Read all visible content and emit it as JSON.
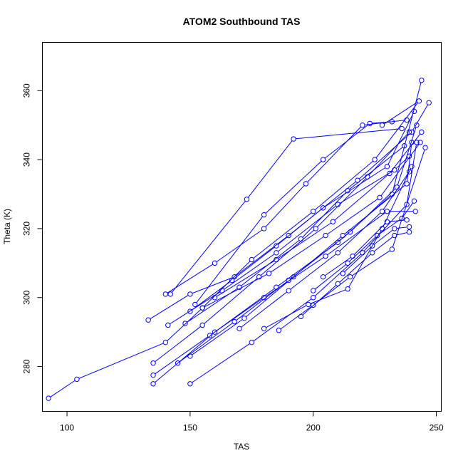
{
  "chart_data": {
    "type": "line",
    "title": "ATOM2 Southbound TAS",
    "xlabel": "TAS",
    "ylabel": "Theta (K)",
    "xlim": [
      90,
      252
    ],
    "ylim": [
      267,
      374
    ],
    "xticks": [
      100,
      150,
      200,
      250
    ],
    "yticks": [
      280,
      300,
      320,
      340,
      360
    ],
    "grid": false,
    "legend": "none",
    "series_color": "#0000ff",
    "marker": "open-circle",
    "series": [
      {
        "name": "",
        "points": [
          [
            92.5,
            270.8
          ],
          [
            104,
            276.3
          ],
          [
            140,
            287
          ],
          [
            155,
            297
          ],
          [
            175,
            311
          ],
          [
            200,
            325
          ],
          [
            225,
            340
          ],
          [
            243,
            357
          ],
          [
            228,
            350
          ]
        ]
      },
      {
        "name": "",
        "points": [
          [
            135,
            275
          ],
          [
            160,
            290
          ],
          [
            185,
            303
          ],
          [
            210,
            316
          ],
          [
            232,
            330
          ],
          [
            244,
            363
          ]
        ]
      },
      {
        "name": "",
        "points": [
          [
            133,
            293.5
          ],
          [
            150,
            301
          ],
          [
            168,
            306
          ],
          [
            190,
            318
          ],
          [
            218,
            334
          ],
          [
            240,
            348
          ],
          [
            247,
            356.5
          ]
        ]
      },
      {
        "name": "",
        "points": [
          [
            150,
            275
          ],
          [
            175,
            287
          ],
          [
            200,
            300
          ],
          [
            220,
            313
          ],
          [
            238,
            327
          ],
          [
            242,
            345
          ]
        ]
      },
      {
        "name": "",
        "points": [
          [
            135,
            277.5
          ],
          [
            158,
            289
          ],
          [
            180,
            300
          ],
          [
            205,
            312
          ],
          [
            230,
            325
          ],
          [
            241.5,
            325
          ]
        ]
      },
      {
        "name": "",
        "points": [
          [
            135,
            281
          ],
          [
            155,
            292
          ],
          [
            178,
            306
          ],
          [
            201,
            320
          ],
          [
            222,
            335
          ],
          [
            239,
            348
          ]
        ]
      },
      {
        "name": "",
        "points": [
          [
            140,
            301
          ],
          [
            160,
            310
          ],
          [
            180,
            320
          ],
          [
            197,
            333
          ],
          [
            220,
            350
          ],
          [
            238,
            351.5
          ]
        ]
      },
      {
        "name": "",
        "points": [
          [
            141,
            292
          ],
          [
            163,
            302
          ],
          [
            185,
            313
          ],
          [
            210,
            327
          ],
          [
            233,
            337
          ],
          [
            239,
            341
          ]
        ]
      },
      {
        "name": "",
        "points": [
          [
            145,
            281
          ],
          [
            168,
            293
          ],
          [
            190,
            305
          ],
          [
            215,
            319
          ],
          [
            234,
            332
          ],
          [
            242,
            350
          ]
        ]
      },
      {
        "name": "",
        "points": [
          [
            150,
            283
          ],
          [
            172,
            294
          ],
          [
            192,
            306
          ],
          [
            212,
            318
          ],
          [
            238,
            333
          ],
          [
            240,
            345
          ]
        ]
      },
      {
        "name": "",
        "points": [
          [
            142,
            301
          ],
          [
            173,
            328.5
          ],
          [
            192,
            346
          ],
          [
            236,
            349
          ]
        ]
      },
      {
        "name": "",
        "points": [
          [
            150,
            296
          ],
          [
            167,
            305
          ],
          [
            185,
            315
          ],
          [
            204,
            326
          ],
          [
            230,
            338
          ],
          [
            241,
            354
          ]
        ]
      },
      {
        "name": "",
        "points": [
          [
            152,
            298
          ],
          [
            180,
            324
          ],
          [
            204,
            340
          ],
          [
            223,
            350.5
          ],
          [
            232,
            351
          ]
        ]
      },
      {
        "name": "",
        "points": [
          [
            148,
            292.5
          ],
          [
            170,
            303
          ],
          [
            195,
            317
          ],
          [
            214,
            331
          ],
          [
            237,
            344
          ]
        ]
      },
      {
        "name": "",
        "points": [
          [
            155,
            297
          ],
          [
            182,
            307
          ],
          [
            205,
            318
          ],
          [
            227,
            329
          ],
          [
            243.5,
            345
          ]
        ]
      },
      {
        "name": "",
        "points": [
          [
            160,
            300
          ],
          [
            185,
            311
          ],
          [
            208,
            322
          ],
          [
            231,
            336
          ],
          [
            244,
            348
          ]
        ]
      },
      {
        "name": "",
        "points": [
          [
            170,
            291
          ],
          [
            190,
            302
          ],
          [
            210,
            313
          ],
          [
            228,
            325
          ],
          [
            239,
            336.5
          ]
        ]
      },
      {
        "name": "",
        "points": [
          [
            180,
            291
          ],
          [
            198,
            298
          ],
          [
            214,
            302.5
          ],
          [
            228,
            320
          ],
          [
            240,
            338
          ]
        ]
      },
      {
        "name": "",
        "points": [
          [
            186,
            290.5
          ],
          [
            200,
            297.8
          ],
          [
            215,
            306
          ],
          [
            232,
            314
          ],
          [
            245.5,
            343.5
          ]
        ]
      },
      {
        "name": "",
        "points": [
          [
            195,
            294.5
          ],
          [
            210,
            304
          ],
          [
            224,
            313
          ],
          [
            233,
            318
          ],
          [
            239,
            319
          ]
        ]
      },
      {
        "name": "",
        "points": [
          [
            200,
            302
          ],
          [
            214,
            310
          ],
          [
            226,
            318
          ],
          [
            236,
            323
          ],
          [
            241,
            328
          ]
        ]
      },
      {
        "name": "",
        "points": [
          [
            204,
            306
          ],
          [
            216,
            312
          ],
          [
            230,
            322
          ],
          [
            238,
            322.5
          ]
        ]
      },
      {
        "name": "",
        "points": [
          [
            212,
            307
          ],
          [
            224,
            315
          ],
          [
            233,
            320
          ],
          [
            239,
            320.5
          ]
        ]
      }
    ]
  }
}
